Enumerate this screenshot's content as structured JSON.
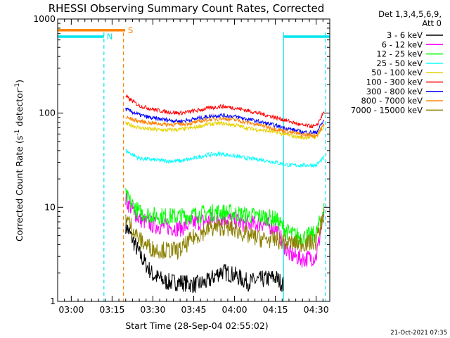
{
  "chart_data": {
    "type": "line",
    "title": "RHESSI Observing Summary Count Rates, Corrected",
    "xlabel": "Start Time (28-Sep-04 02:55:02)",
    "ylabel": "Corrected Count Rate (s",
    "ylabel_sup1": "-1",
    "ylabel_mid": " detector",
    "ylabel_sup2": "-1",
    "ylabel_end": ")",
    "yscale": "log",
    "ylim": [
      1,
      1000
    ],
    "xlim_minutes": [
      0,
      100
    ],
    "x_tick_minutes": [
      5,
      20,
      35,
      50,
      65,
      80,
      95
    ],
    "x_tick_labels": [
      "03:00",
      "03:15",
      "03:30",
      "03:45",
      "04:00",
      "04:15",
      "04:30"
    ],
    "y_ticks": [
      1,
      10,
      100,
      1000
    ],
    "y_tick_labels": [
      "1",
      "10",
      "100",
      "1000"
    ],
    "detector_label": "Det 1,3,4,5,6,9,",
    "attenuator_label": "Att 0",
    "footer_date": "21-Oct-2021 07:35",
    "flag_labels": {
      "saa": "S",
      "night": "N"
    },
    "flag_intervals": [
      {
        "flag": "S",
        "color": "#ff8000",
        "y": 760,
        "start": 0,
        "end": 24.8
      },
      {
        "flag": "N",
        "color": "#00e5ee",
        "y": 650,
        "start": 0,
        "end": 17
      },
      {
        "flag": "N",
        "color": "#00e5ee",
        "y": 650,
        "start": 83,
        "end": 100
      }
    ],
    "vertical_markers": [
      {
        "color": "#00e5ee",
        "minute": 17,
        "style": "dashed"
      },
      {
        "color": "#ff8000",
        "minute": 24.2,
        "style": "dashed"
      },
      {
        "color": "#00e5ee",
        "minute": 83,
        "style": "solid"
      },
      {
        "color": "#00e5ee",
        "minute": 98.5,
        "style": "dashed"
      }
    ],
    "data_start_minute": 25,
    "data_end_minute": 98.5,
    "series": [
      {
        "name": "3 - 6 keV",
        "color": "#000000",
        "x": [
          25,
          30,
          35,
          40,
          45,
          50,
          55,
          60,
          65,
          70,
          75,
          80,
          83
        ],
        "values": [
          6.5,
          3.2,
          1.9,
          1.6,
          1.6,
          1.5,
          1.6,
          2.1,
          1.9,
          1.6,
          1.7,
          1.8,
          1.5
        ]
      },
      {
        "name": "6 - 12 keV",
        "color": "#ff00ff",
        "x": [
          25,
          30,
          35,
          40,
          45,
          50,
          55,
          60,
          65,
          70,
          75,
          80,
          85,
          90,
          95,
          98
        ],
        "values": [
          12,
          7.5,
          6.5,
          6.2,
          6.0,
          6.8,
          7.2,
          7.8,
          7.2,
          6.5,
          6.8,
          6.0,
          3.2,
          2.8,
          3.0,
          9
        ]
      },
      {
        "name": "12 - 25 keV",
        "color": "#00ff00",
        "x": [
          25,
          30,
          35,
          40,
          45,
          50,
          55,
          60,
          65,
          70,
          75,
          80,
          85,
          90,
          95,
          98
        ],
        "values": [
          13,
          8.8,
          8.2,
          8.0,
          8.0,
          8.3,
          8.7,
          8.9,
          8.6,
          8.2,
          8.0,
          7.5,
          5.3,
          4.8,
          5.2,
          10
        ]
      },
      {
        "name": "25 - 50 keV",
        "color": "#00ffff",
        "x": [
          25,
          30,
          35,
          40,
          45,
          50,
          55,
          60,
          65,
          70,
          75,
          80,
          85,
          90,
          95,
          98
        ],
        "values": [
          40,
          33,
          32,
          31,
          31,
          33,
          36,
          37,
          35,
          33,
          32,
          30,
          28,
          28,
          28,
          34
        ]
      },
      {
        "name": "50 - 100 keV",
        "color": "#e6d200",
        "x": [
          25,
          30,
          35,
          40,
          45,
          50,
          55,
          60,
          65,
          70,
          75,
          80,
          85,
          90,
          95,
          98
        ],
        "values": [
          78,
          70,
          67,
          66,
          67,
          70,
          76,
          78,
          75,
          69,
          66,
          63,
          58,
          55,
          56,
          72
        ]
      },
      {
        "name": "100 - 300 keV",
        "color": "#ff0000",
        "x": [
          25,
          30,
          35,
          40,
          45,
          50,
          55,
          60,
          65,
          70,
          75,
          80,
          85,
          90,
          95,
          98
        ],
        "values": [
          150,
          120,
          110,
          103,
          100,
          105,
          112,
          118,
          114,
          106,
          98,
          90,
          82,
          74,
          72,
          105
        ]
      },
      {
        "name": "300 - 800 keV",
        "color": "#0000ff",
        "x": [
          25,
          30,
          35,
          40,
          45,
          50,
          55,
          60,
          65,
          70,
          75,
          80,
          85,
          90,
          95,
          98
        ],
        "values": [
          110,
          96,
          88,
          85,
          82,
          86,
          92,
          95,
          92,
          86,
          80,
          74,
          68,
          63,
          62,
          85
        ]
      },
      {
        "name": "800 - 7000 keV",
        "color": "#ff8000",
        "x": [
          25,
          30,
          35,
          40,
          45,
          50,
          55,
          60,
          65,
          70,
          75,
          80,
          85,
          90,
          95,
          98
        ],
        "values": [
          90,
          82,
          78,
          76,
          76,
          79,
          85,
          88,
          85,
          79,
          74,
          68,
          63,
          59,
          58,
          76
        ]
      },
      {
        "name": "7000 - 15000 keV",
        "color": "#8b8000",
        "x": [
          25,
          30,
          35,
          40,
          45,
          50,
          55,
          60,
          65,
          70,
          75,
          80,
          85,
          90,
          95,
          98
        ],
        "values": [
          8,
          4.5,
          3.6,
          3.5,
          3.5,
          4.8,
          5.8,
          6.2,
          5.8,
          5.0,
          4.6,
          4.5,
          4.2,
          4.1,
          4.3,
          9
        ]
      }
    ]
  }
}
